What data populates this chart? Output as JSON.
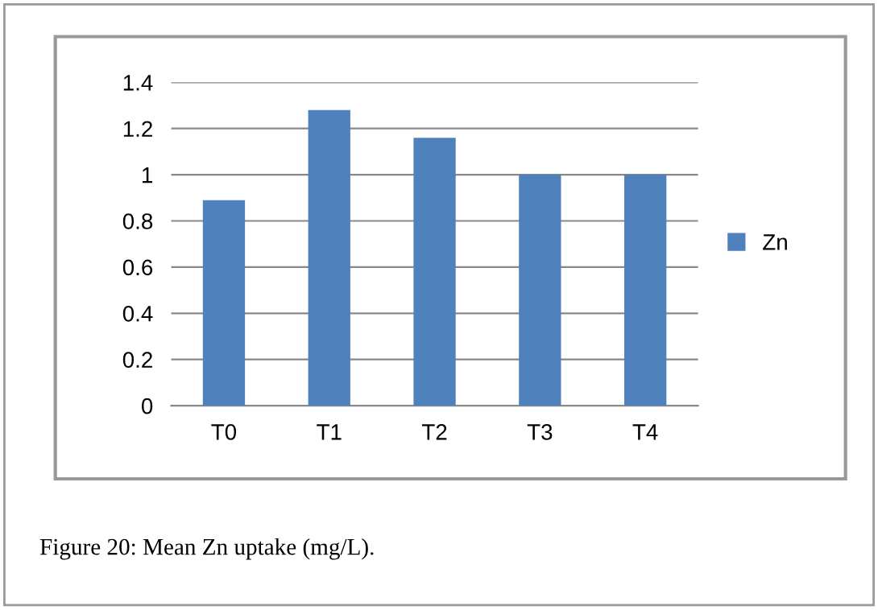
{
  "chart_data": {
    "type": "bar",
    "categories": [
      "T0",
      "T1",
      "T2",
      "T3",
      "T4"
    ],
    "series": [
      {
        "name": "Zn",
        "color": "#4f81bd",
        "values": [
          0.89,
          1.28,
          1.16,
          1.0,
          1.0
        ]
      }
    ],
    "ylim": [
      0,
      1.4
    ],
    "yticks": [
      0,
      0.2,
      0.4,
      0.6,
      0.8,
      1,
      1.2,
      1.4
    ],
    "grid": "y",
    "legend": "right",
    "annotations": [
      "Figure 20: Mean Zn uptake (mg/L)."
    ]
  }
}
